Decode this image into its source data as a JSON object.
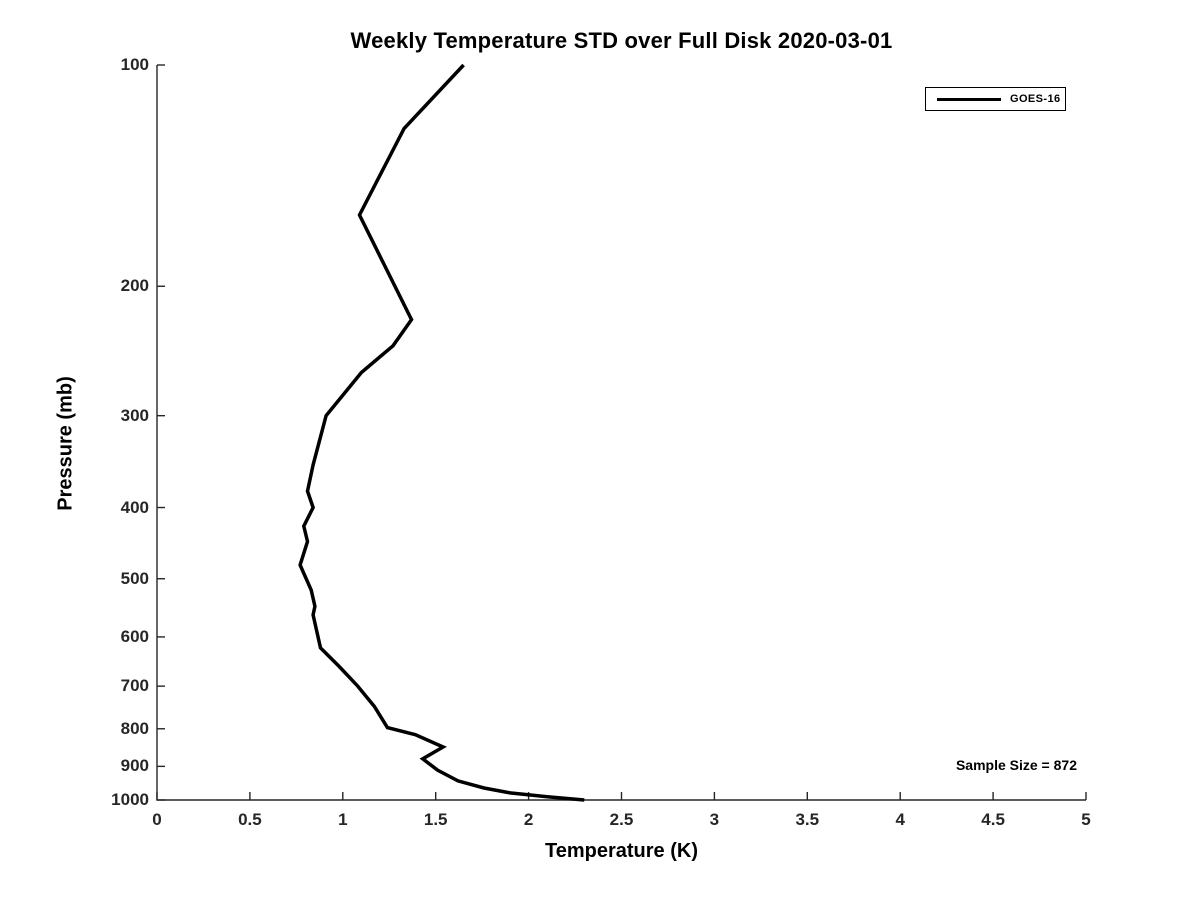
{
  "figure": {
    "title": "Weekly Temperature STD over Full Disk 2020-03-01",
    "sample_size_note": "Sample Size = 872",
    "legend": {
      "entries": [
        {
          "label": "GOES-16",
          "color": "#000000"
        }
      ]
    }
  },
  "chart_data": {
    "type": "line",
    "title": "Weekly Temperature STD over Full Disk 2020-03-01",
    "xlabel": "Temperature (K)",
    "ylabel": "Pressure (mb)",
    "xlim": [
      0,
      5
    ],
    "x_ticks": [
      0,
      0.5,
      1,
      1.5,
      2,
      2.5,
      3,
      3.5,
      4,
      4.5,
      5
    ],
    "x_tick_labels": [
      "0",
      "0.5",
      "1",
      "1.5",
      "2",
      "2.5",
      "3",
      "3.5",
      "4",
      "4.5",
      "5"
    ],
    "ylim": [
      100,
      1000
    ],
    "y_scale": "log",
    "y_axis_direction": "reversed",
    "y_ticks": [
      100,
      200,
      300,
      400,
      500,
      600,
      700,
      800,
      900,
      1000
    ],
    "y_tick_labels": [
      "100",
      "200",
      "300",
      "400",
      "500",
      "600",
      "700",
      "800",
      "900",
      "1000"
    ],
    "grid": false,
    "legend_position": "top-right",
    "annotations": [
      {
        "text": "Sample Size = 872",
        "position": "bottom-right"
      }
    ],
    "series": [
      {
        "name": "GOES-16",
        "color": "#000000",
        "line_width": 3.5,
        "points": [
          {
            "pressure_mb": 100,
            "temperature_K": 1.65
          },
          {
            "pressure_mb": 122,
            "temperature_K": 1.33
          },
          {
            "pressure_mb": 160,
            "temperature_K": 1.09
          },
          {
            "pressure_mb": 222,
            "temperature_K": 1.37
          },
          {
            "pressure_mb": 241,
            "temperature_K": 1.27
          },
          {
            "pressure_mb": 262,
            "temperature_K": 1.1
          },
          {
            "pressure_mb": 300,
            "temperature_K": 0.91
          },
          {
            "pressure_mb": 350,
            "temperature_K": 0.84
          },
          {
            "pressure_mb": 380,
            "temperature_K": 0.81
          },
          {
            "pressure_mb": 400,
            "temperature_K": 0.84
          },
          {
            "pressure_mb": 424,
            "temperature_K": 0.79
          },
          {
            "pressure_mb": 445,
            "temperature_K": 0.81
          },
          {
            "pressure_mb": 479,
            "temperature_K": 0.77
          },
          {
            "pressure_mb": 518,
            "temperature_K": 0.83
          },
          {
            "pressure_mb": 545,
            "temperature_K": 0.85
          },
          {
            "pressure_mb": 560,
            "temperature_K": 0.84
          },
          {
            "pressure_mb": 621,
            "temperature_K": 0.88
          },
          {
            "pressure_mb": 658,
            "temperature_K": 0.98
          },
          {
            "pressure_mb": 700,
            "temperature_K": 1.08
          },
          {
            "pressure_mb": 746,
            "temperature_K": 1.17
          },
          {
            "pressure_mb": 797,
            "temperature_K": 1.24
          },
          {
            "pressure_mb": 815,
            "temperature_K": 1.39
          },
          {
            "pressure_mb": 847,
            "temperature_K": 1.54
          },
          {
            "pressure_mb": 879,
            "temperature_K": 1.43
          },
          {
            "pressure_mb": 911,
            "temperature_K": 1.51
          },
          {
            "pressure_mb": 942,
            "temperature_K": 1.62
          },
          {
            "pressure_mb": 963,
            "temperature_K": 1.76
          },
          {
            "pressure_mb": 978,
            "temperature_K": 1.9
          },
          {
            "pressure_mb": 990,
            "temperature_K": 2.1
          },
          {
            "pressure_mb": 1000,
            "temperature_K": 2.3
          }
        ]
      }
    ]
  }
}
